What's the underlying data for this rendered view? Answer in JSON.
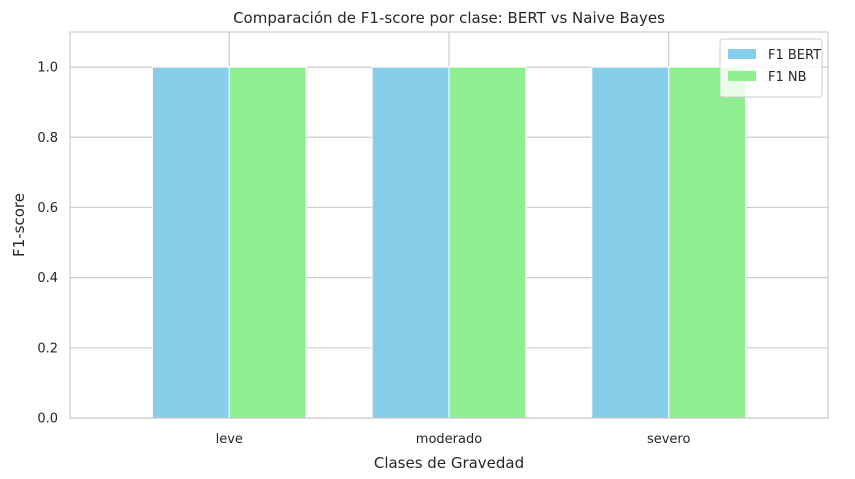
{
  "chart_data": {
    "type": "bar",
    "title": "Comparación de F1-score por clase: BERT vs Naive Bayes",
    "xlabel": "Clases de Gravedad",
    "ylabel": "F1-score",
    "categories": [
      "leve",
      "moderado",
      "severo"
    ],
    "series": [
      {
        "name": "F1 BERT",
        "values": [
          1.0,
          1.0,
          1.0
        ],
        "color": "#87ceeb"
      },
      {
        "name": "F1 NB",
        "values": [
          1.0,
          1.0,
          1.0
        ],
        "color": "#90ee90"
      }
    ],
    "ylim": [
      0,
      1.1
    ],
    "yticks": [
      "0.0",
      "0.2",
      "0.4",
      "0.6",
      "0.8",
      "1.0"
    ],
    "grid": true,
    "legend_position": "top-right"
  }
}
